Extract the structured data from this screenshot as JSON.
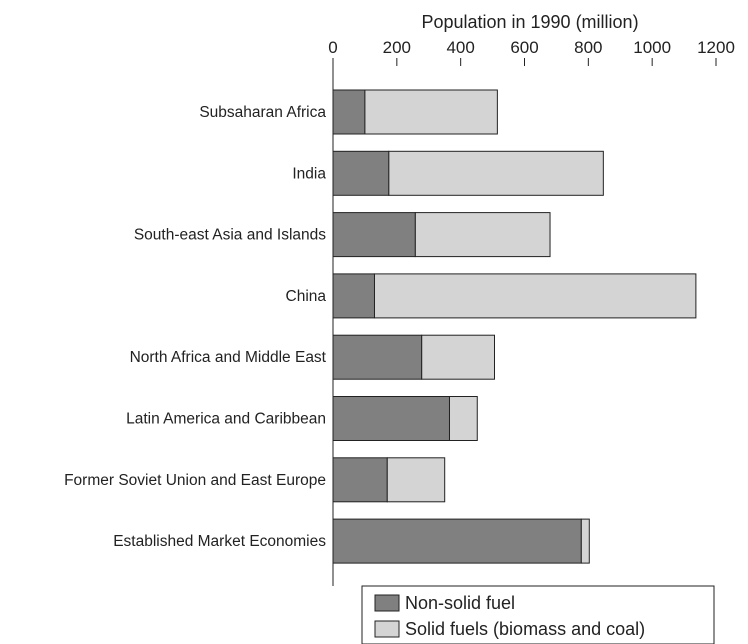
{
  "chart_data": {
    "type": "bar",
    "orientation": "horizontal",
    "stacked": true,
    "xlabel": "Population in 1990 (million)",
    "xlabel_position": "top",
    "xlim": [
      0,
      1200
    ],
    "xticks": [
      0,
      200,
      400,
      600,
      800,
      1000,
      1200
    ],
    "grid": false,
    "legend_position": "bottom",
    "categories": [
      "Subsaharan Africa",
      "India",
      "South-east Asia and Islands",
      "China",
      "North Africa and Middle East",
      "Latin America and Caribbean",
      "Former Soviet Union and East Europe",
      "Established Market Economies"
    ],
    "series": [
      {
        "name": "Non-solid fuel",
        "color": "#808080",
        "values": [
          100,
          175,
          258,
          130,
          278,
          365,
          170,
          778
        ]
      },
      {
        "name": "Solid fuels (biomass and coal)",
        "color": "#d4d4d4",
        "values": [
          415,
          672,
          422,
          1007,
          228,
          87,
          180,
          25
        ]
      }
    ]
  }
}
